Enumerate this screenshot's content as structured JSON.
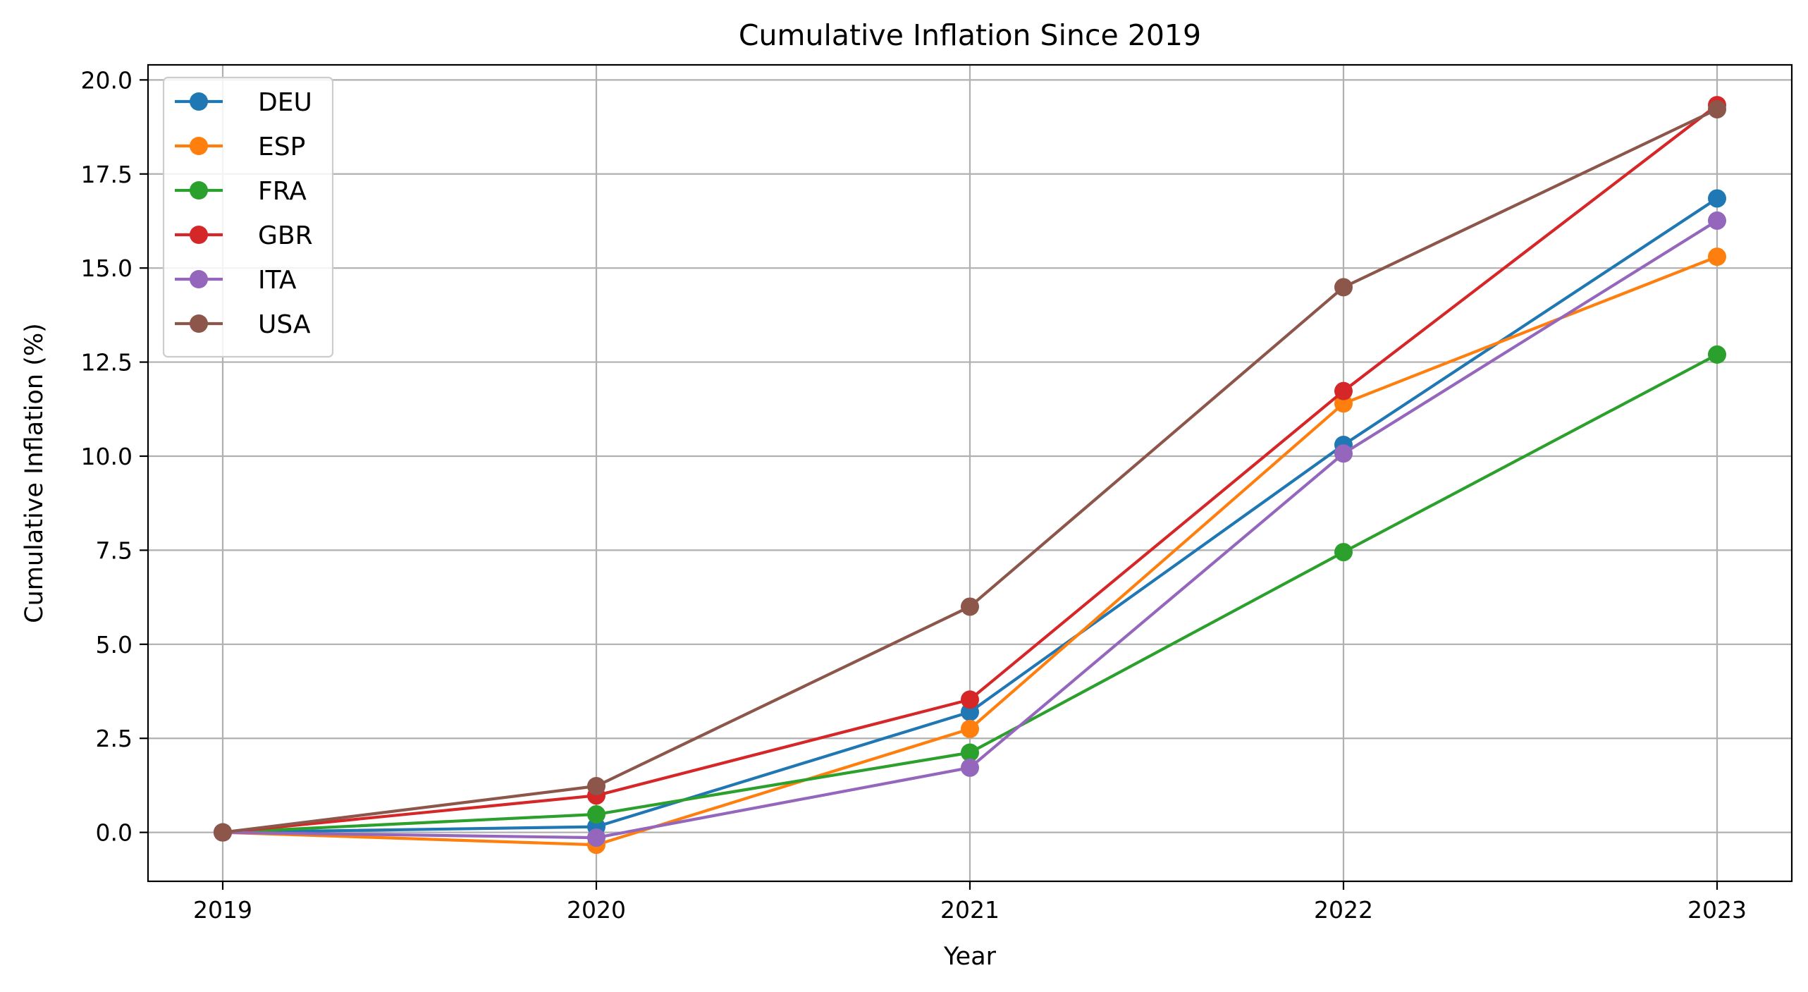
{
  "chart_data": {
    "type": "line",
    "title": "Cumulative Inflation Since 2019",
    "xlabel": "Year",
    "ylabel": "Cumulative Inflation (%)",
    "x": [
      2019,
      2020,
      2021,
      2022,
      2023
    ],
    "x_tick_labels": [
      "2019",
      "2020",
      "2021",
      "2022",
      "2023"
    ],
    "y_ticks": [
      0.0,
      2.5,
      5.0,
      7.5,
      10.0,
      12.5,
      15.0,
      17.5,
      20.0
    ],
    "y_tick_labels": [
      "0.0",
      "2.5",
      "5.0",
      "7.5",
      "10.0",
      "12.5",
      "15.0",
      "17.5",
      "20.0"
    ],
    "xlim": [
      2018.8,
      2023.2
    ],
    "ylim": [
      -1.3,
      20.4
    ],
    "grid": true,
    "legend_position": "top-left",
    "series": [
      {
        "name": "DEU",
        "color": "#1f77b4",
        "values": [
          0.0,
          0.15,
          3.2,
          10.3,
          16.85
        ]
      },
      {
        "name": "ESP",
        "color": "#ff7f0e",
        "values": [
          0.0,
          -0.33,
          2.75,
          11.4,
          15.3
        ]
      },
      {
        "name": "FRA",
        "color": "#2ca02c",
        "values": [
          0.0,
          0.48,
          2.12,
          7.45,
          12.7
        ]
      },
      {
        "name": "GBR",
        "color": "#d62728",
        "values": [
          0.0,
          0.98,
          3.53,
          11.73,
          19.33
        ]
      },
      {
        "name": "ITA",
        "color": "#9467bd",
        "values": [
          0.0,
          -0.14,
          1.72,
          10.07,
          16.26
        ]
      },
      {
        "name": "USA",
        "color": "#8c564b",
        "values": [
          0.0,
          1.23,
          6.0,
          14.49,
          19.22
        ]
      }
    ]
  }
}
